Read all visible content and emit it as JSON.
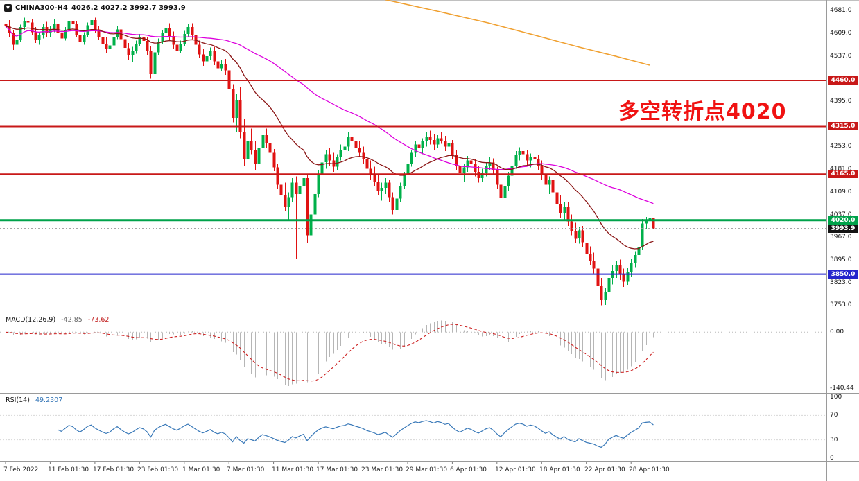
{
  "header": {
    "symbol": "CHINA300-H4",
    "ohlc": "4026.2 4027.2 3992.7 3993.9",
    "marker_icon": "▼"
  },
  "annotation": {
    "text": "多空转折点4020",
    "color": "#f01212"
  },
  "colors": {
    "background": "#ffffff",
    "bull": "#00b04a",
    "bear": "#e01212",
    "separator": "#9a9a9a",
    "window_edge": "#c0c0c0"
  },
  "chart_data": {
    "type": "candlestick",
    "symbol": "CHINA300",
    "timeframe": "H4",
    "y_range": [
      3740,
      4700
    ],
    "y_ticks": [
      4681,
      4609,
      4537,
      4465,
      4395,
      4323,
      4253,
      4181,
      4109,
      4037,
      3967,
      3895,
      3823,
      3753
    ],
    "x_labels": [
      "7 Feb 2022",
      "11 Feb 01:30",
      "17 Feb 01:30",
      "23 Feb 01:30",
      "1 Mar 01:30",
      "7 Mar 01:30",
      "11 Mar 01:30",
      "17 Mar 01:30",
      "23 Mar 01:30",
      "29 Mar 01:30",
      "6 Apr 01:30",
      "12 Apr 01:30",
      "18 Apr 01:30",
      "22 Apr 01:30",
      "28 Apr 01:30"
    ],
    "candles_per_label": 12,
    "current_ohlc": {
      "open": 4026.2,
      "high": 4027.2,
      "low": 3992.7,
      "close": 3993.9
    },
    "levels": [
      {
        "price": 4460.0,
        "label": "4460.0",
        "color": "#c81818",
        "width": 2
      },
      {
        "price": 4315.0,
        "label": "4315.0",
        "color": "#c81818",
        "width": 2
      },
      {
        "price": 4165.0,
        "label": "4165.0",
        "color": "#c81818",
        "width": 2
      },
      {
        "price": 4020.0,
        "label": "4020.0",
        "color": "#00a24a",
        "width": 3
      },
      {
        "price": 3850.0,
        "label": "3850.0",
        "color": "#2424cc",
        "width": 2
      }
    ],
    "bid": {
      "price": 3993.9,
      "label": "3993.9",
      "badge_color": "#141414",
      "line_color": "#999999"
    },
    "moving_averages": [
      {
        "type": "sma",
        "period": 60,
        "color": "#dd00dd"
      },
      {
        "type": "ema",
        "period": 24,
        "color": "#8b1616"
      }
    ],
    "long_ma_partial": {
      "color": "#f0a030",
      "points": [
        [
          102,
          4714
        ],
        [
          116,
          4678
        ],
        [
          130,
          4640
        ],
        [
          142,
          4603
        ],
        [
          154,
          4565
        ],
        [
          164,
          4536
        ],
        [
          173,
          4508
        ]
      ]
    },
    "indicators": {
      "macd": {
        "title": "MACD(12,26,9)",
        "value_main": "-42.85",
        "value_signal": "-73.62",
        "fast": 12,
        "slow": 26,
        "signal": 9,
        "scale_max_label": "0.00",
        "scale_min_label": "-140.44",
        "histogram_color": "#b6b6b6",
        "signal_color": "#cc2020"
      },
      "rsi": {
        "title": "RSI(14)",
        "value": "49.2307",
        "period": 14,
        "levels": [
          70,
          30
        ],
        "scale_labels": [
          100,
          70,
          30,
          0
        ],
        "color": "#3878b8"
      }
    },
    "candles": [
      [
        4638,
        4664,
        4618,
        4630
      ],
      [
        4630,
        4650,
        4598,
        4608
      ],
      [
        4608,
        4618,
        4556,
        4572
      ],
      [
        4572,
        4598,
        4552,
        4588
      ],
      [
        4588,
        4636,
        4582,
        4628
      ],
      [
        4628,
        4658,
        4618,
        4648
      ],
      [
        4648,
        4666,
        4632,
        4642
      ],
      [
        4642,
        4652,
        4602,
        4612
      ],
      [
        4612,
        4628,
        4578,
        4588
      ],
      [
        4588,
        4612,
        4572,
        4602
      ],
      [
        4602,
        4638,
        4592,
        4628
      ],
      [
        4628,
        4644,
        4598,
        4610
      ],
      [
        4610,
        4632,
        4598,
        4622
      ],
      [
        4622,
        4652,
        4612,
        4638
      ],
      [
        4638,
        4648,
        4598,
        4608
      ],
      [
        4608,
        4622,
        4582,
        4592
      ],
      [
        4592,
        4628,
        4586,
        4618
      ],
      [
        4618,
        4658,
        4612,
        4648
      ],
      [
        4648,
        4664,
        4628,
        4638
      ],
      [
        4638,
        4646,
        4596,
        4604
      ],
      [
        4604,
        4618,
        4568,
        4580
      ],
      [
        4580,
        4612,
        4572,
        4604
      ],
      [
        4604,
        4642,
        4596,
        4634
      ],
      [
        4634,
        4660,
        4624,
        4650
      ],
      [
        4650,
        4658,
        4608,
        4620
      ],
      [
        4620,
        4632,
        4588,
        4598
      ],
      [
        4598,
        4610,
        4562,
        4576
      ],
      [
        4576,
        4596,
        4546,
        4558
      ],
      [
        4558,
        4584,
        4538,
        4570
      ],
      [
        4570,
        4608,
        4562,
        4598
      ],
      [
        4598,
        4630,
        4590,
        4620
      ],
      [
        4620,
        4628,
        4578,
        4590
      ],
      [
        4590,
        4602,
        4548,
        4562
      ],
      [
        4562,
        4578,
        4526,
        4540
      ],
      [
        4540,
        4566,
        4518,
        4552
      ],
      [
        4552,
        4586,
        4544,
        4576
      ],
      [
        4576,
        4606,
        4568,
        4596
      ],
      [
        4596,
        4618,
        4572,
        4584
      ],
      [
        4584,
        4598,
        4540,
        4552
      ],
      [
        4552,
        4568,
        4466,
        4480
      ],
      [
        4480,
        4560,
        4472,
        4548
      ],
      [
        4548,
        4592,
        4540,
        4582
      ],
      [
        4582,
        4618,
        4574,
        4608
      ],
      [
        4608,
        4636,
        4598,
        4626
      ],
      [
        4626,
        4640,
        4588,
        4600
      ],
      [
        4600,
        4614,
        4560,
        4572
      ],
      [
        4572,
        4588,
        4540,
        4554
      ],
      [
        4554,
        4586,
        4546,
        4576
      ],
      [
        4576,
        4616,
        4568,
        4606
      ],
      [
        4606,
        4638,
        4598,
        4628
      ],
      [
        4628,
        4640,
        4590,
        4602
      ],
      [
        4602,
        4616,
        4560,
        4572
      ],
      [
        4572,
        4586,
        4530,
        4542
      ],
      [
        4542,
        4560,
        4506,
        4520
      ],
      [
        4520,
        4546,
        4502,
        4536
      ],
      [
        4536,
        4564,
        4524,
        4554
      ],
      [
        4554,
        4566,
        4508,
        4520
      ],
      [
        4520,
        4532,
        4486,
        4498
      ],
      [
        4498,
        4526,
        4488,
        4512
      ],
      [
        4512,
        4528,
        4478,
        4492
      ],
      [
        4492,
        4502,
        4418,
        4432
      ],
      [
        4432,
        4448,
        4328,
        4342
      ],
      [
        4342,
        4418,
        4298,
        4398
      ],
      [
        4398,
        4438,
        4278,
        4298
      ],
      [
        4298,
        4338,
        4192,
        4212
      ],
      [
        4212,
        4288,
        4182,
        4268
      ],
      [
        4268,
        4308,
        4228,
        4242
      ],
      [
        4242,
        4268,
        4178,
        4198
      ],
      [
        4198,
        4258,
        4188,
        4248
      ],
      [
        4248,
        4298,
        4232,
        4288
      ],
      [
        4288,
        4308,
        4248,
        4262
      ],
      [
        4262,
        4282,
        4218,
        4232
      ],
      [
        4232,
        4244,
        4174,
        4186
      ],
      [
        4186,
        4198,
        4118,
        4132
      ],
      [
        4132,
        4162,
        4082,
        4098
      ],
      [
        4098,
        4138,
        4048,
        4062
      ],
      [
        4062,
        4108,
        4018,
        4092
      ],
      [
        4092,
        4152,
        4078,
        4138
      ],
      [
        4138,
        4158,
        3898,
        4102
      ],
      [
        4102,
        4148,
        4068,
        4128
      ],
      [
        4128,
        4158,
        4098,
        4152
      ],
      [
        4152,
        4164,
        3948,
        3972
      ],
      [
        3972,
        4058,
        3958,
        4038
      ],
      [
        4038,
        4118,
        4028,
        4102
      ],
      [
        4102,
        4178,
        4092,
        4162
      ],
      [
        4162,
        4218,
        4148,
        4202
      ],
      [
        4202,
        4242,
        4182,
        4228
      ],
      [
        4228,
        4248,
        4192,
        4208
      ],
      [
        4208,
        4232,
        4172,
        4188
      ],
      [
        4188,
        4228,
        4178,
        4218
      ],
      [
        4218,
        4258,
        4208,
        4242
      ],
      [
        4242,
        4268,
        4222,
        4252
      ],
      [
        4252,
        4298,
        4238,
        4282
      ],
      [
        4282,
        4302,
        4252,
        4268
      ],
      [
        4268,
        4288,
        4232,
        4248
      ],
      [
        4248,
        4268,
        4218,
        4232
      ],
      [
        4232,
        4252,
        4198,
        4212
      ],
      [
        4212,
        4228,
        4168,
        4182
      ],
      [
        4182,
        4208,
        4148,
        4162
      ],
      [
        4162,
        4188,
        4128,
        4142
      ],
      [
        4142,
        4162,
        4098,
        4112
      ],
      [
        4112,
        4138,
        4082,
        4122
      ],
      [
        4122,
        4152,
        4102,
        4138
      ],
      [
        4138,
        4148,
        4078,
        4092
      ],
      [
        4092,
        4108,
        4038,
        4052
      ],
      [
        4052,
        4098,
        4042,
        4088
      ],
      [
        4088,
        4138,
        4078,
        4128
      ],
      [
        4128,
        4172,
        4118,
        4162
      ],
      [
        4162,
        4208,
        4152,
        4198
      ],
      [
        4198,
        4242,
        4188,
        4232
      ],
      [
        4232,
        4268,
        4218,
        4258
      ],
      [
        4258,
        4282,
        4232,
        4248
      ],
      [
        4248,
        4278,
        4228,
        4268
      ],
      [
        4268,
        4298,
        4252,
        4282
      ],
      [
        4282,
        4302,
        4258,
        4272
      ],
      [
        4272,
        4292,
        4242,
        4258
      ],
      [
        4258,
        4288,
        4248,
        4278
      ],
      [
        4278,
        4298,
        4260,
        4270
      ],
      [
        4270,
        4286,
        4238,
        4252
      ],
      [
        4252,
        4272,
        4232,
        4262
      ],
      [
        4262,
        4272,
        4212,
        4226
      ],
      [
        4226,
        4242,
        4178,
        4192
      ],
      [
        4192,
        4212,
        4152,
        4168
      ],
      [
        4168,
        4198,
        4142,
        4186
      ],
      [
        4186,
        4222,
        4172,
        4208
      ],
      [
        4208,
        4232,
        4182,
        4196
      ],
      [
        4196,
        4212,
        4158,
        4172
      ],
      [
        4172,
        4192,
        4138,
        4152
      ],
      [
        4152,
        4182,
        4142,
        4170
      ],
      [
        4170,
        4202,
        4158,
        4190
      ],
      [
        4190,
        4218,
        4178,
        4202
      ],
      [
        4202,
        4215,
        4162,
        4176
      ],
      [
        4176,
        4188,
        4118,
        4132
      ],
      [
        4132,
        4148,
        4076,
        4090
      ],
      [
        4090,
        4138,
        4080,
        4126
      ],
      [
        4126,
        4172,
        4112,
        4160
      ],
      [
        4160,
        4202,
        4148,
        4192
      ],
      [
        4192,
        4238,
        4182,
        4226
      ],
      [
        4226,
        4250,
        4208,
        4238
      ],
      [
        4238,
        4256,
        4212,
        4228
      ],
      [
        4228,
        4242,
        4192,
        4208
      ],
      [
        4208,
        4230,
        4186,
        4220
      ],
      [
        4220,
        4238,
        4198,
        4212
      ],
      [
        4212,
        4226,
        4178,
        4192
      ],
      [
        4192,
        4208,
        4148,
        4162
      ],
      [
        4162,
        4180,
        4118,
        4132
      ],
      [
        4132,
        4158,
        4102,
        4146
      ],
      [
        4146,
        4162,
        4092,
        4108
      ],
      [
        4108,
        4128,
        4058,
        4072
      ],
      [
        4072,
        4098,
        4028,
        4042
      ],
      [
        4042,
        4078,
        4018,
        4062
      ],
      [
        4062,
        4076,
        4002,
        4016
      ],
      [
        4016,
        4038,
        3972,
        3986
      ],
      [
        3986,
        4012,
        3948,
        3962
      ],
      [
        3962,
        3998,
        3946,
        3988
      ],
      [
        3988,
        4002,
        3936,
        3950
      ],
      [
        3950,
        3968,
        3898,
        3912
      ],
      [
        3912,
        3938,
        3878,
        3892
      ],
      [
        3892,
        3918,
        3852,
        3868
      ],
      [
        3868,
        3882,
        3798,
        3812
      ],
      [
        3812,
        3838,
        3752,
        3768
      ],
      [
        3768,
        3808,
        3753,
        3792
      ],
      [
        3792,
        3852,
        3782,
        3838
      ],
      [
        3838,
        3878,
        3818,
        3860
      ],
      [
        3860,
        3892,
        3838,
        3878
      ],
      [
        3878,
        3896,
        3832,
        3848
      ],
      [
        3848,
        3868,
        3810,
        3826
      ],
      [
        3826,
        3870,
        3816,
        3856
      ],
      [
        3856,
        3898,
        3842,
        3886
      ],
      [
        3886,
        3922,
        3872,
        3910
      ],
      [
        3910,
        3948,
        3892,
        3936
      ],
      [
        3936,
        4024,
        3928,
        4010
      ],
      [
        4010,
        4030,
        3992,
        4020
      ],
      [
        4020,
        4034,
        4002,
        4026
      ],
      [
        4026.2,
        4027.2,
        3992.7,
        3993.9
      ]
    ]
  }
}
